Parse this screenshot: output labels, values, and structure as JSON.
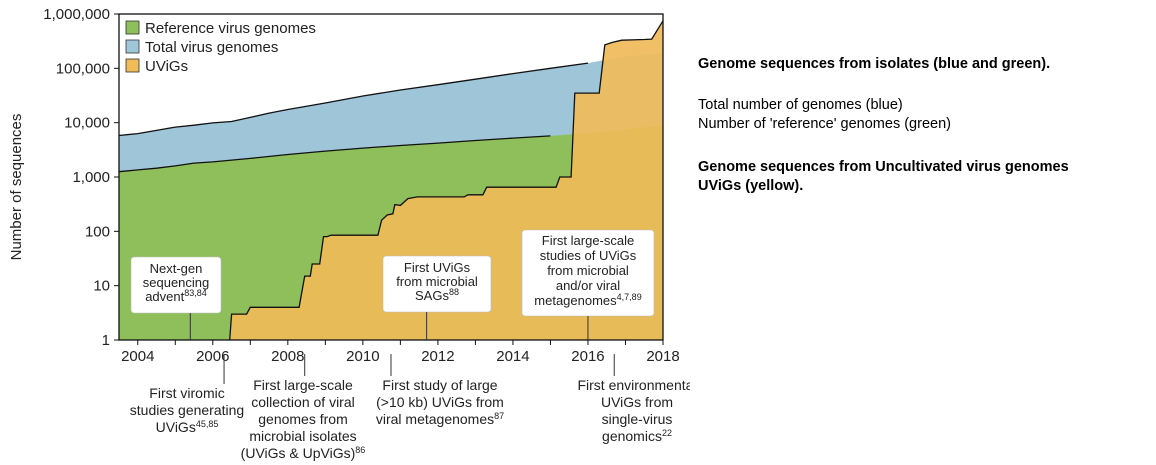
{
  "chart_data": {
    "type": "area",
    "ylabel": "Number of sequences",
    "yscale": "log",
    "ylim": [
      1,
      1000000
    ],
    "xlim": [
      2003.5,
      2018
    ],
    "y_ticks": [
      {
        "value": 1,
        "label": "1"
      },
      {
        "value": 10,
        "label": "10"
      },
      {
        "value": 100,
        "label": "100"
      },
      {
        "value": 1000,
        "label": "1,000"
      },
      {
        "value": 10000,
        "label": "10,000"
      },
      {
        "value": 100000,
        "label": "100,000"
      },
      {
        "value": 1000000,
        "label": "1,000,000"
      }
    ],
    "x_ticks": [
      {
        "value": 2004,
        "label": "2004"
      },
      {
        "value": 2006,
        "label": "2006"
      },
      {
        "value": 2008,
        "label": "2008"
      },
      {
        "value": 2010,
        "label": "2010"
      },
      {
        "value": 2012,
        "label": "2012"
      },
      {
        "value": 2014,
        "label": "2014"
      },
      {
        "value": 2016,
        "label": "2016"
      },
      {
        "value": 2018,
        "label": "2018"
      }
    ],
    "legend_position": "top-left",
    "series": [
      {
        "name": "Total virus genomes",
        "color": "#9fc5d9",
        "points": [
          [
            2003.5,
            5800
          ],
          [
            2004.0,
            6300
          ],
          [
            2004.5,
            7200
          ],
          [
            2005.0,
            8300
          ],
          [
            2005.5,
            9000
          ],
          [
            2006.0,
            9900
          ],
          [
            2006.5,
            10500
          ],
          [
            2007.0,
            12500
          ],
          [
            2007.5,
            15000
          ],
          [
            2008.0,
            17500
          ],
          [
            2009.0,
            23000
          ],
          [
            2010.0,
            31000
          ],
          [
            2011.0,
            40000
          ],
          [
            2012.0,
            50000
          ],
          [
            2013.0,
            63000
          ],
          [
            2014.0,
            80000
          ],
          [
            2015.0,
            100000
          ],
          [
            2016.0,
            125000
          ],
          [
            2016.5,
            145000
          ],
          [
            2017.0,
            165000
          ],
          [
            2018.0,
            190000
          ]
        ]
      },
      {
        "name": "Reference virus genomes",
        "color": "#8fbf5a",
        "points": [
          [
            2003.5,
            1250
          ],
          [
            2004.0,
            1350
          ],
          [
            2004.5,
            1450
          ],
          [
            2005.0,
            1600
          ],
          [
            2005.5,
            1800
          ],
          [
            2006.0,
            1900
          ],
          [
            2007.0,
            2200
          ],
          [
            2008.0,
            2600
          ],
          [
            2009.0,
            3000
          ],
          [
            2010.0,
            3400
          ],
          [
            2011.0,
            3800
          ],
          [
            2012.0,
            4200
          ],
          [
            2013.0,
            4700
          ],
          [
            2014.0,
            5200
          ],
          [
            2015.0,
            5700
          ],
          [
            2016.0,
            6400
          ],
          [
            2017.0,
            7500
          ],
          [
            2018.0,
            9000
          ]
        ]
      },
      {
        "name": "UViGs",
        "color": "#f0bb59",
        "points": [
          [
            2006.45,
            1
          ],
          [
            2006.5,
            3
          ],
          [
            2006.9,
            3
          ],
          [
            2007.0,
            4
          ],
          [
            2008.3,
            4
          ],
          [
            2008.45,
            15
          ],
          [
            2008.6,
            15
          ],
          [
            2008.65,
            25
          ],
          [
            2008.85,
            25
          ],
          [
            2008.95,
            80
          ],
          [
            2009.05,
            80
          ],
          [
            2009.15,
            85
          ],
          [
            2009.9,
            85
          ],
          [
            2010.4,
            85
          ],
          [
            2010.5,
            160
          ],
          [
            2010.65,
            200
          ],
          [
            2010.8,
            210
          ],
          [
            2010.85,
            310
          ],
          [
            2011.0,
            300
          ],
          [
            2011.2,
            400
          ],
          [
            2011.45,
            430
          ],
          [
            2012.7,
            430
          ],
          [
            2012.8,
            470
          ],
          [
            2013.2,
            470
          ],
          [
            2013.3,
            650
          ],
          [
            2015.15,
            650
          ],
          [
            2015.25,
            1000
          ],
          [
            2015.55,
            1000
          ],
          [
            2015.65,
            35000
          ],
          [
            2016.3,
            35000
          ],
          [
            2016.45,
            270000
          ],
          [
            2016.65,
            300000
          ],
          [
            2016.9,
            330000
          ],
          [
            2017.5,
            340000
          ],
          [
            2017.7,
            345000
          ],
          [
            2018.0,
            750000
          ]
        ]
      }
    ],
    "annotations_in_plot": [
      {
        "lines": [
          "Next-gen",
          "sequencing",
          "advent"
        ],
        "sup": "83,84",
        "x": 2005.4
      },
      {
        "lines": [
          "First UViGs",
          "from microbial",
          "SAGs"
        ],
        "sup": "88",
        "x": 2011.7
      },
      {
        "lines": [
          "First large-scale",
          "studies of UViGs",
          "from microbial",
          "and/or viral",
          "metagenomes"
        ],
        "sup": "4,7,89",
        "x": 2016.0
      }
    ],
    "annotations_below": [
      {
        "lines": [
          "First viromic",
          "studies generating",
          "UViGs"
        ],
        "sup": "45,85",
        "x": 2006.3
      },
      {
        "lines": [
          "First large-scale",
          "collection of viral",
          "genomes from",
          "microbial isolates",
          "(UViGs & UpViGs)"
        ],
        "sup": "86",
        "x": 2008.45
      },
      {
        "lines": [
          "First study of large",
          "(>10 kb) UViGs from",
          "viral metagenomes"
        ],
        "sup": "87",
        "x": 2010.75
      },
      {
        "lines": [
          "First environmental",
          "UViGs from",
          "single-virus",
          "genomics"
        ],
        "sup": "22",
        "x": 2016.7
      }
    ]
  },
  "side_text": {
    "heading1": "Genome sequences from isolates (blue and green).",
    "line1": "Total number of genomes (blue)",
    "line2": "Number of 'reference' genomes (green)",
    "heading2a": "Genome sequences from Uncultivated virus genomes",
    "heading2b": "UViGs (yellow)."
  }
}
